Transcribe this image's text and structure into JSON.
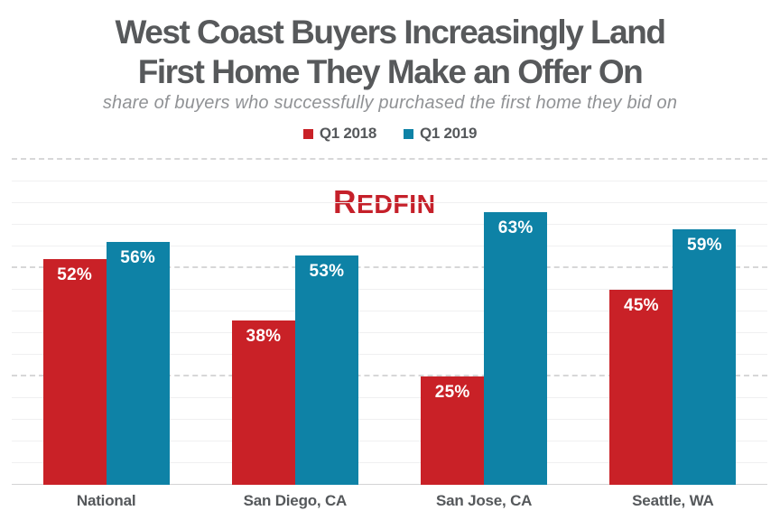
{
  "title": {
    "line1": "West Coast Buyers Increasingly Land",
    "line2": "First Home They Make an Offer On"
  },
  "subtitle": "share of buyers who successfully purchased the first home they bid on",
  "legend": {
    "items": [
      {
        "label": "Q1 2018",
        "color": "#c92127"
      },
      {
        "label": "Q1 2019",
        "color": "#0e82a6"
      }
    ]
  },
  "watermark": {
    "first_letter": "R",
    "rest": "EDFIN",
    "color": "#c5202a"
  },
  "colors": {
    "title_text": "#57595b",
    "subtitle_text": "#909295",
    "label_text": "#55585b",
    "bar_value_text": "#ffffff",
    "grid_major": "#d7d7d8",
    "grid_minor": "#f0f0f1",
    "axis_line": "#d4d4d5"
  },
  "chart_data": {
    "type": "bar",
    "title": "West Coast Buyers Increasingly Land First Home They Make an Offer On",
    "subtitle": "share of buyers who successfully purchased the first home they bid on",
    "categories": [
      "National",
      "San Diego, CA",
      "San Jose, CA",
      "Seattle, WA"
    ],
    "series": [
      {
        "name": "Q1 2018",
        "color": "#c92127",
        "values": [
          52,
          38,
          25,
          45
        ]
      },
      {
        "name": "Q1 2019",
        "color": "#0e82a6",
        "values": [
          56,
          53,
          63,
          59
        ]
      }
    ],
    "data_labels": [
      [
        "52%",
        "38%",
        "25%",
        "45%"
      ],
      [
        "56%",
        "53%",
        "63%",
        "59%"
      ]
    ],
    "value_suffix": "%",
    "xlabel": "",
    "ylabel": "",
    "ylim": [
      0,
      75
    ],
    "y_major_step": 25,
    "y_minor_step": 5,
    "grid": true,
    "y_axis_labels_shown": false,
    "legend_position": "top-center"
  }
}
